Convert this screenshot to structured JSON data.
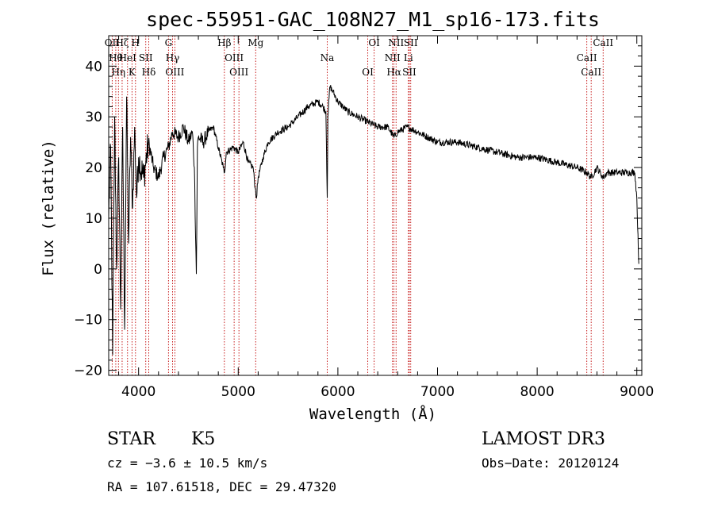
{
  "chart_data": {
    "type": "line",
    "title": "spec-55951-GAC_108N27_M1_sp16-173.fits",
    "xlabel": "Wavelength (Å)",
    "ylabel": "Flux (relative)",
    "xlim": [
      3700,
      9050
    ],
    "ylim": [
      -21,
      46
    ],
    "xticks": [
      4000,
      5000,
      6000,
      7000,
      8000,
      9000
    ],
    "yticks": [
      -20,
      -10,
      0,
      10,
      20,
      30,
      40
    ],
    "tick_labels_x": [
      "4000",
      "5000",
      "6000",
      "7000",
      "8000",
      "9000"
    ],
    "tick_labels_y": [
      "−20",
      "−10",
      "0",
      "10",
      "20",
      "30",
      "40"
    ],
    "spectrum": {
      "x": [
        3700,
        3720,
        3740,
        3760,
        3780,
        3800,
        3820,
        3840,
        3860,
        3880,
        3900,
        3920,
        3940,
        3960,
        3980,
        4000,
        4050,
        4100,
        4150,
        4200,
        4250,
        4300,
        4340,
        4400,
        4450,
        4500,
        4540,
        4560,
        4580,
        4590,
        4600,
        4650,
        4700,
        4750,
        4800,
        4850,
        4862,
        4880,
        4950,
        5000,
        5050,
        5100,
        5150,
        5170,
        5183,
        5200,
        5250,
        5300,
        5400,
        5500,
        5600,
        5700,
        5800,
        5850,
        5880,
        5893,
        5900,
        5920,
        5950,
        6000,
        6050,
        6100,
        6200,
        6300,
        6400,
        6500,
        6563,
        6600,
        6700,
        6800,
        7000,
        7200,
        7400,
        7600,
        7800,
        8000,
        8200,
        8400,
        8498,
        8542,
        8600,
        8662,
        8700,
        8800,
        8900,
        8980,
        9000,
        9020
      ],
      "y": [
        10,
        24,
        -17,
        30,
        0,
        22,
        -8,
        28,
        -12,
        34,
        5,
        26,
        12,
        28,
        14,
        22,
        18,
        25,
        20,
        18,
        22,
        24,
        27,
        26,
        28,
        25,
        27,
        20,
        -1,
        24,
        26,
        25,
        27,
        28,
        24,
        20,
        19,
        23,
        24,
        23,
        25,
        21,
        20,
        16,
        14,
        18,
        22,
        25,
        27,
        28,
        30,
        32,
        33,
        32,
        31,
        14,
        30,
        36,
        35,
        33,
        32,
        31,
        30,
        29,
        28,
        28,
        26,
        27,
        28,
        27,
        25,
        25,
        24,
        23,
        22,
        22,
        21,
        20,
        19,
        18,
        20,
        18,
        19,
        19,
        19,
        19,
        14,
        1
      ]
    },
    "lines": [
      {
        "x": 3735,
        "label": "OII"
      },
      {
        "x": 3771,
        "label": "Hθ"
      },
      {
        "x": 3798,
        "label": "Hη"
      },
      {
        "x": 3835,
        "label": "Hζ"
      },
      {
        "x": 3889,
        "label": "HeI"
      },
      {
        "x": 3934,
        "label": "K"
      },
      {
        "x": 3969,
        "label": "H"
      },
      {
        "x": 4072,
        "label": "SII"
      },
      {
        "x": 4102,
        "label": "Hδ"
      },
      {
        "x": 4300,
        "label": "G"
      },
      {
        "x": 4341,
        "label": "Hγ"
      },
      {
        "x": 4364,
        "label": "OIII"
      },
      {
        "x": 4861,
        "label": "Hβ"
      },
      {
        "x": 4959,
        "label": "OIII"
      },
      {
        "x": 5007,
        "label": "OIII"
      },
      {
        "x": 5175,
        "label": "Mg"
      },
      {
        "x": 5893,
        "label": "Na"
      },
      {
        "x": 6300,
        "label": "OI"
      },
      {
        "x": 6364,
        "label": "OI"
      },
      {
        "x": 6548,
        "label": "NII"
      },
      {
        "x": 6563,
        "label": "Hα"
      },
      {
        "x": 6584,
        "label": "NII"
      },
      {
        "x": 6708,
        "label": "Li"
      },
      {
        "x": 6717,
        "label": "SII"
      },
      {
        "x": 6731,
        "label": "SII"
      },
      {
        "x": 8498,
        "label": "CaII"
      },
      {
        "x": 8542,
        "label": "CaII"
      },
      {
        "x": 8662,
        "label": "CaII"
      }
    ],
    "line_color": "#c00000"
  },
  "info": {
    "class": "STAR",
    "subclass": "K5",
    "survey": "LAMOST DR3",
    "cz": "cz = −3.6 ± 10.5 km/s",
    "obs_date": "Obs−Date: 20120124",
    "coords": "RA = 107.61518, DEC =  29.47320"
  }
}
